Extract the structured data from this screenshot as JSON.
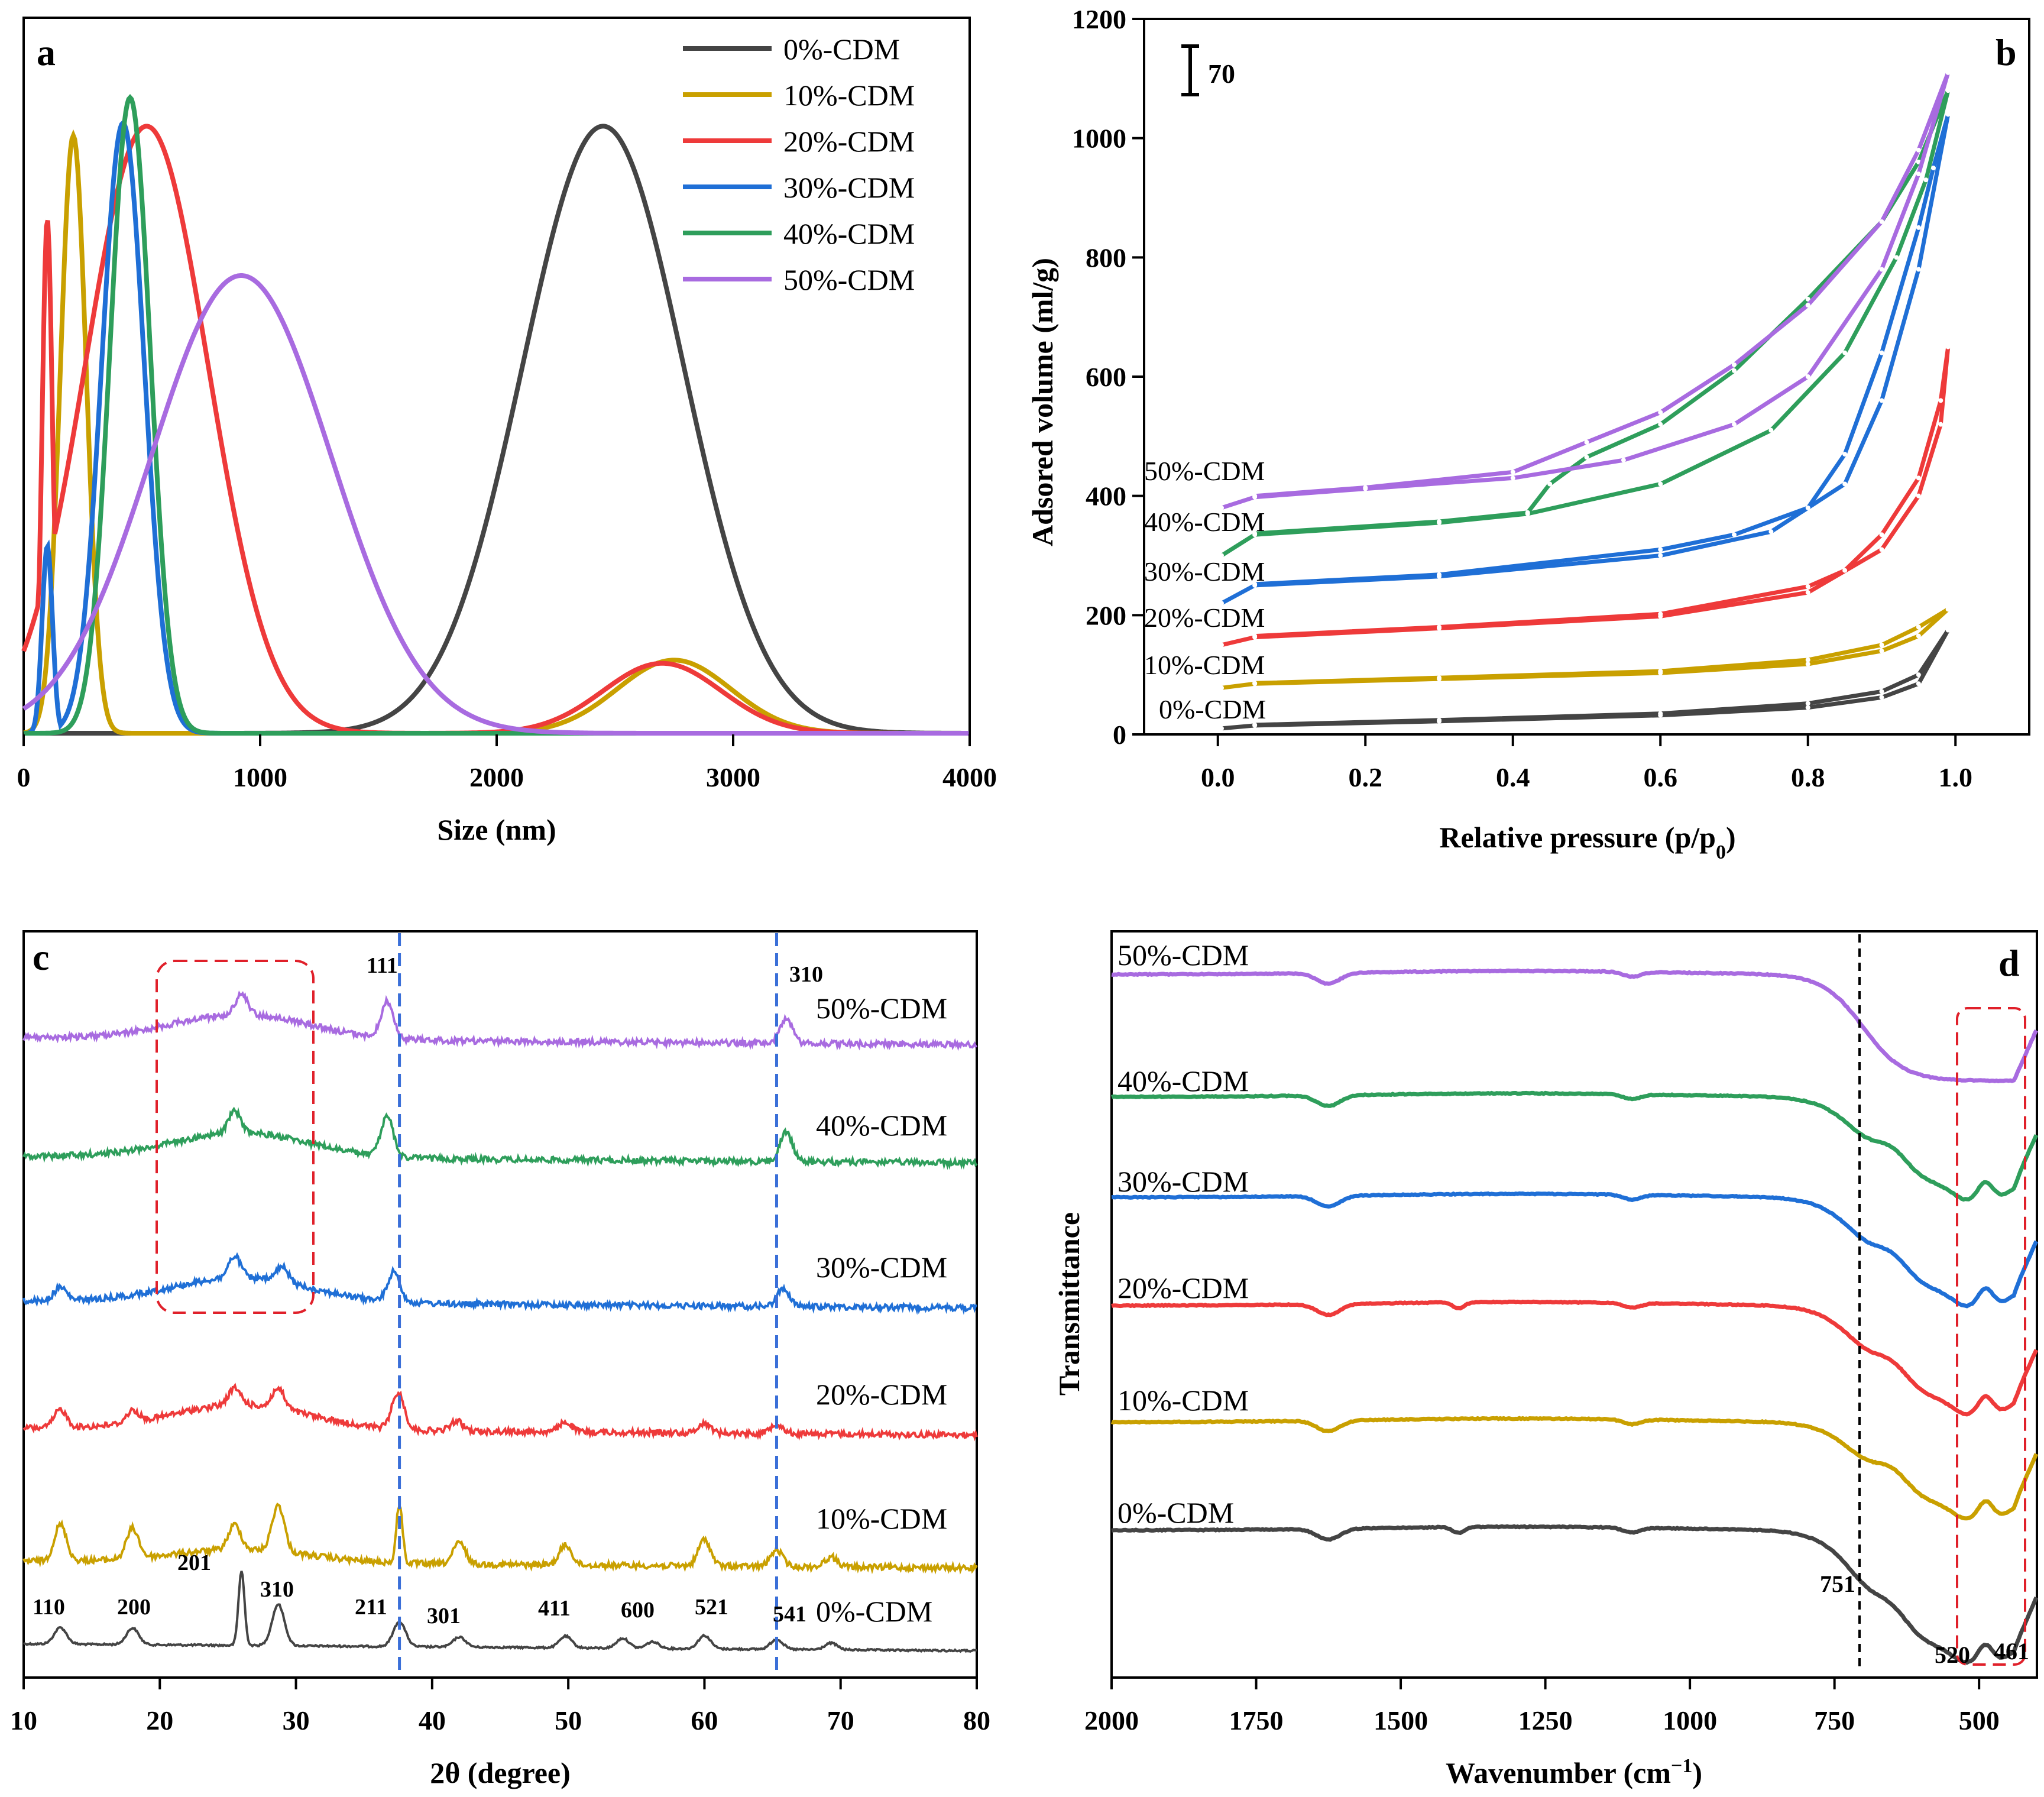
{
  "series_labels": [
    "0%-CDM",
    "10%-CDM",
    "20%-CDM",
    "30%-CDM",
    "40%-CDM",
    "50%-CDM"
  ],
  "colors": {
    "0%-CDM": "#444444",
    "10%-CDM": "#C9A000",
    "20%-CDM": "#EE3A3A",
    "30%-CDM": "#1F6FD6",
    "40%-CDM": "#2E9E5B",
    "50%-CDM": "#A86BE0",
    "dashbox": "#E0202A",
    "vline": "#3A6FD8"
  },
  "chart_data": [
    {
      "panel": "a",
      "type": "line",
      "xlabel": "Size (nm)",
      "ylabel": "",
      "xlim": [
        0,
        4000
      ],
      "xticks": [
        "0",
        "1000",
        "2000",
        "3000",
        "4000"
      ],
      "legend": "top-right",
      "series": [
        {
          "name": "0%-CDM",
          "peaks": [
            {
              "center": 2450,
              "height": 0.955,
              "sigma": 340
            }
          ]
        },
        {
          "name": "10%-CDM",
          "peaks": [
            {
              "center": 210,
              "height": 0.94,
              "sigma": 55
            },
            {
              "center": 2750,
              "height": 0.115,
              "sigma": 240
            }
          ]
        },
        {
          "name": "20%-CDM",
          "peaks": [
            {
              "center": 100,
              "height": 0.81,
              "sigma": 22
            },
            {
              "center": 520,
              "height": 0.955,
              "sigma": 260
            },
            {
              "center": 2700,
              "height": 0.11,
              "sigma": 250
            }
          ]
        },
        {
          "name": "30%-CDM",
          "peaks": [
            {
              "center": 100,
              "height": 0.295,
              "sigma": 22
            },
            {
              "center": 420,
              "height": 0.96,
              "sigma": 90
            }
          ]
        },
        {
          "name": "40%-CDM",
          "peaks": [
            {
              "center": 450,
              "height": 1.0,
              "sigma": 85
            }
          ]
        },
        {
          "name": "50%-CDM",
          "peaks": [
            {
              "center": 920,
              "height": 0.72,
              "sigma": 380
            }
          ]
        }
      ]
    },
    {
      "panel": "b",
      "type": "line",
      "xlabel": "Relative pressure (p/p0)",
      "ylabel": "Adsored volume  (ml/g)",
      "xlim": [
        -0.1,
        1.1
      ],
      "ylim": [
        0,
        1200
      ],
      "xticks": [
        "0.0",
        "0.2",
        "0.4",
        "0.6",
        "0.8",
        "1.0"
      ],
      "yticks": [
        "0",
        "200",
        "400",
        "600",
        "800",
        "1000",
        "1200"
      ],
      "scale_bar": "70",
      "series": [
        {
          "name": "0%-CDM",
          "ads": [
            [
              0.005,
              10
            ],
            [
              0.05,
              15
            ],
            [
              0.3,
              22
            ],
            [
              0.6,
              32
            ],
            [
              0.8,
              45
            ],
            [
              0.9,
              62
            ],
            [
              0.95,
              85
            ],
            [
              0.99,
              175
            ]
          ],
          "des": [
            [
              0.99,
              175
            ],
            [
              0.95,
              100
            ],
            [
              0.9,
              72
            ],
            [
              0.8,
              52
            ],
            [
              0.6,
              35
            ],
            [
              0.3,
              24
            ],
            [
              0.05,
              16
            ]
          ]
        },
        {
          "name": "10%-CDM",
          "ads": [
            [
              0.005,
              78
            ],
            [
              0.05,
              85
            ],
            [
              0.3,
              93
            ],
            [
              0.6,
              103
            ],
            [
              0.8,
              118
            ],
            [
              0.9,
              140
            ],
            [
              0.95,
              165
            ],
            [
              0.99,
              210
            ]
          ],
          "des": [
            [
              0.99,
              210
            ],
            [
              0.95,
              180
            ],
            [
              0.9,
              150
            ],
            [
              0.8,
              125
            ],
            [
              0.6,
              106
            ],
            [
              0.3,
              95
            ],
            [
              0.05,
              86
            ]
          ]
        },
        {
          "name": "20%-CDM",
          "ads": [
            [
              0.005,
              150
            ],
            [
              0.05,
              163
            ],
            [
              0.3,
              178
            ],
            [
              0.6,
              198
            ],
            [
              0.8,
              238
            ],
            [
              0.9,
              310
            ],
            [
              0.95,
              400
            ],
            [
              0.98,
              520
            ],
            [
              0.99,
              650
            ]
          ],
          "des": [
            [
              0.99,
              650
            ],
            [
              0.98,
              560
            ],
            [
              0.95,
              430
            ],
            [
              0.9,
              335
            ],
            [
              0.85,
              275
            ],
            [
              0.8,
              248
            ],
            [
              0.6,
              202
            ],
            [
              0.3,
              180
            ],
            [
              0.05,
              165
            ]
          ]
        },
        {
          "name": "30%-CDM",
          "ads": [
            [
              0.005,
              220
            ],
            [
              0.05,
              250
            ],
            [
              0.3,
              265
            ],
            [
              0.6,
              300
            ],
            [
              0.75,
              340
            ],
            [
              0.85,
              420
            ],
            [
              0.9,
              560
            ],
            [
              0.95,
              780
            ],
            [
              0.99,
              1040
            ]
          ],
          "des": [
            [
              0.99,
              1040
            ],
            [
              0.97,
              950
            ],
            [
              0.95,
              850
            ],
            [
              0.9,
              640
            ],
            [
              0.85,
              470
            ],
            [
              0.8,
              380
            ],
            [
              0.7,
              335
            ],
            [
              0.6,
              310
            ],
            [
              0.3,
              268
            ],
            [
              0.05,
              252
            ]
          ]
        },
        {
          "name": "40%-CDM",
          "ads": [
            [
              0.005,
              300
            ],
            [
              0.05,
              335
            ],
            [
              0.3,
              355
            ],
            [
              0.42,
              370
            ],
            [
              0.6,
              420
            ],
            [
              0.75,
              510
            ],
            [
              0.85,
              640
            ],
            [
              0.92,
              800
            ],
            [
              0.96,
              930
            ],
            [
              0.99,
              1080
            ]
          ],
          "des": [
            [
              0.99,
              1080
            ],
            [
              0.95,
              960
            ],
            [
              0.9,
              860
            ],
            [
              0.8,
              730
            ],
            [
              0.7,
              610
            ],
            [
              0.6,
              520
            ],
            [
              0.5,
              465
            ],
            [
              0.45,
              420
            ],
            [
              0.42,
              372
            ],
            [
              0.3,
              357
            ],
            [
              0.05,
              337
            ]
          ]
        },
        {
          "name": "50%-CDM",
          "ads": [
            [
              0.005,
              380
            ],
            [
              0.05,
              398
            ],
            [
              0.2,
              412
            ],
            [
              0.4,
              430
            ],
            [
              0.55,
              460
            ],
            [
              0.7,
              520
            ],
            [
              0.8,
              600
            ],
            [
              0.9,
              780
            ],
            [
              0.95,
              940
            ],
            [
              0.99,
              1110
            ]
          ],
          "des": [
            [
              0.99,
              1110
            ],
            [
              0.95,
              980
            ],
            [
              0.9,
              860
            ],
            [
              0.8,
              720
            ],
            [
              0.7,
              620
            ],
            [
              0.6,
              540
            ],
            [
              0.5,
              490
            ],
            [
              0.4,
              440
            ],
            [
              0.2,
              414
            ],
            [
              0.05,
              400
            ]
          ]
        }
      ]
    },
    {
      "panel": "c",
      "type": "line",
      "xlabel": "2θ (degree)",
      "xlim": [
        10,
        80
      ],
      "xticks": [
        "10",
        "20",
        "30",
        "40",
        "50",
        "60",
        "70",
        "80"
      ],
      "vlines": [
        37.6,
        65.3
      ],
      "peak_labels": [
        {
          "x": 12.7,
          "label": "110"
        },
        {
          "x": 18.0,
          "label": "200"
        },
        {
          "x": 26.0,
          "label": "201"
        },
        {
          "x": 28.7,
          "label": "310"
        },
        {
          "x": 37.6,
          "label": "211"
        },
        {
          "x": 42.0,
          "label": "301"
        },
        {
          "x": 49.8,
          "label": "411"
        },
        {
          "x": 54.0,
          "label": "600"
        },
        {
          "x": 60.0,
          "label": "521"
        },
        {
          "x": 65.3,
          "label": "541"
        },
        {
          "x": 37.0,
          "label": "111"
        },
        {
          "x": 66.0,
          "label": "310"
        }
      ],
      "series": [
        {
          "name": "0%-CDM",
          "peaks": [
            [
              12.7,
              1.0
            ],
            [
              18.0,
              1.0
            ],
            [
              26.0,
              4.5
            ],
            [
              28.7,
              2.5
            ],
            [
              37.6,
              1.5
            ],
            [
              42.0,
              0.6
            ],
            [
              49.8,
              0.7
            ],
            [
              54.0,
              0.6
            ],
            [
              56.2,
              0.4
            ],
            [
              60.0,
              0.8
            ],
            [
              65.3,
              0.6
            ],
            [
              69.3,
              0.4
            ]
          ]
        },
        {
          "name": "10%-CDM",
          "peaks": [
            [
              12.7,
              2.2
            ],
            [
              18.0,
              1.8
            ],
            [
              25.5,
              1.5
            ],
            [
              28.7,
              2.8
            ],
            [
              37.6,
              3.6
            ],
            [
              42.0,
              1.3
            ],
            [
              49.8,
              1.2
            ],
            [
              60.0,
              1.6
            ],
            [
              65.3,
              1.0
            ],
            [
              69.3,
              0.6
            ]
          ]
        },
        {
          "name": "20%-CDM",
          "peaks": [
            [
              12.7,
              1.1
            ],
            [
              18.0,
              0.7
            ],
            [
              25.5,
              1.0
            ],
            [
              28.7,
              1.2
            ],
            [
              37.5,
              2.2
            ],
            [
              41.8,
              0.6
            ],
            [
              49.8,
              0.6
            ],
            [
              60.0,
              0.6
            ],
            [
              65.3,
              0.6
            ]
          ]
        },
        {
          "name": "30%-CDM",
          "peaks": [
            [
              12.7,
              0.8
            ],
            [
              25.5,
              1.3
            ],
            [
              29.0,
              0.9
            ],
            [
              37.2,
              1.8
            ],
            [
              65.8,
              1.1
            ]
          ]
        },
        {
          "name": "40%-CDM",
          "peaks": [
            [
              25.5,
              1.3
            ],
            [
              36.7,
              2.4
            ],
            [
              66.0,
              1.8
            ]
          ]
        },
        {
          "name": "50%-CDM",
          "peaks": [
            [
              26.0,
              1.2
            ],
            [
              36.7,
              2.2
            ],
            [
              66.0,
              1.5
            ]
          ]
        }
      ]
    },
    {
      "panel": "d",
      "type": "line",
      "xlabel": "Wavenumber (cm⁻¹)",
      "ylabel": "Transmittance",
      "xlim": [
        2000,
        400
      ],
      "xticks": [
        "2000",
        "1750",
        "1500",
        "1250",
        "1000",
        "750",
        "500"
      ],
      "vline": 722,
      "annotations": [
        "751",
        "520",
        "461"
      ],
      "series": [
        {
          "name": "0%-CDM"
        },
        {
          "name": "10%-CDM"
        },
        {
          "name": "20%-CDM"
        },
        {
          "name": "30%-CDM"
        },
        {
          "name": "40%-CDM"
        },
        {
          "name": "50%-CDM"
        }
      ]
    }
  ]
}
